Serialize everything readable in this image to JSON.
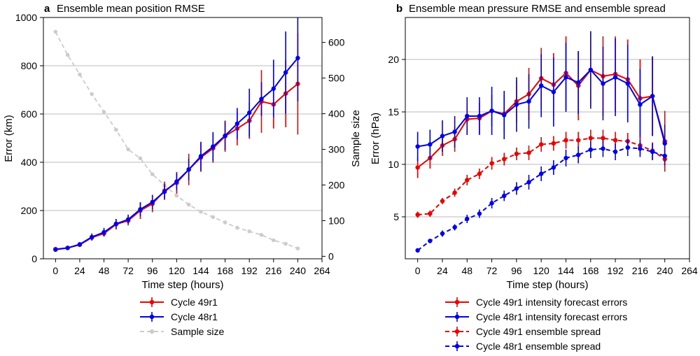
{
  "colors": {
    "c49": "#ee0000",
    "c48": "#0000ee",
    "sample": "#cccccc",
    "grid": "#bbbbbb"
  },
  "chart_data": [
    {
      "type": "line",
      "panel_letter": "a",
      "title": "Ensemble mean position RMSE",
      "xlabel": "Time step (hours)",
      "ylabel": "Error (km)",
      "y2label": "Sample size",
      "xlim": [
        -12,
        264
      ],
      "ylim": [
        0,
        1000
      ],
      "y2lim": [
        -7,
        670
      ],
      "xticks": [
        0,
        24,
        48,
        72,
        96,
        120,
        144,
        168,
        192,
        216,
        240,
        264
      ],
      "yticks": [
        0,
        200,
        400,
        600,
        800,
        1000
      ],
      "y2ticks": [
        0,
        100,
        200,
        300,
        400,
        500,
        600
      ],
      "grid": "horizontal",
      "x": [
        0,
        12,
        24,
        36,
        48,
        60,
        72,
        84,
        96,
        108,
        120,
        132,
        144,
        156,
        168,
        180,
        192,
        204,
        216,
        228,
        240
      ],
      "series": [
        {
          "name": "Cycle 49r1",
          "color_key": "c49",
          "axis": "left",
          "dashed": false,
          "values": [
            40,
            45,
            58,
            88,
            105,
            143,
            158,
            200,
            228,
            282,
            315,
            370,
            420,
            458,
            508,
            540,
            572,
            652,
            640,
            685,
            725
          ],
          "errors": [
            5,
            5,
            6,
            10,
            12,
            22,
            20,
            35,
            35,
            38,
            45,
            65,
            60,
            60,
            65,
            70,
            75,
            130,
            100,
            140,
            210
          ]
        },
        {
          "name": "Cycle 48r1",
          "color_key": "c48",
          "axis": "left",
          "dashed": false,
          "values": [
            38,
            45,
            60,
            90,
            110,
            145,
            163,
            205,
            235,
            278,
            320,
            370,
            425,
            465,
            510,
            560,
            605,
            662,
            705,
            772,
            832
          ],
          "errors": [
            5,
            5,
            6,
            15,
            18,
            20,
            20,
            28,
            30,
            30,
            35,
            45,
            60,
            60,
            60,
            65,
            100,
            70,
            120,
            170,
            180
          ]
        },
        {
          "name": "Sample size",
          "color_key": "sample",
          "axis": "right",
          "dashed": true,
          "values": [
            630,
            565,
            510,
            455,
            405,
            355,
            300,
            275,
            230,
            200,
            170,
            145,
            125,
            110,
            95,
            80,
            70,
            60,
            45,
            35,
            22
          ]
        }
      ],
      "legend": {
        "placement": "below",
        "items": [
          "Cycle 49r1",
          "Cycle 48r1",
          "Sample size"
        ]
      }
    },
    {
      "type": "line",
      "panel_letter": "b",
      "title": "Ensemble mean pressure RMSE and ensemble spread",
      "xlabel": "Time step (hours)",
      "ylabel": "Error (hPa)",
      "xlim": [
        -12,
        264
      ],
      "ylim": [
        1,
        24
      ],
      "xticks": [
        0,
        24,
        48,
        72,
        96,
        120,
        144,
        168,
        192,
        216,
        240,
        264
      ],
      "yticks": [
        5,
        10,
        15,
        20
      ],
      "grid": "horizontal",
      "x": [
        0,
        12,
        24,
        36,
        48,
        60,
        72,
        84,
        96,
        108,
        120,
        132,
        144,
        156,
        168,
        180,
        192,
        204,
        216,
        228,
        240
      ],
      "series": [
        {
          "name": "Cycle 49r1 intensity forecast errors",
          "color_key": "c49",
          "dashed": false,
          "values": [
            9.7,
            10.6,
            11.8,
            12.4,
            14.3,
            14.4,
            15.1,
            14.8,
            16.0,
            16.7,
            18.2,
            17.6,
            18.7,
            17.5,
            19.0,
            18.4,
            18.6,
            18.1,
            16.3,
            16.5,
            12.2
          ],
          "errors": [
            1.0,
            1.0,
            1.0,
            1.2,
            1.5,
            1.5,
            1.5,
            1.8,
            2.0,
            2.5,
            2.9,
            3.0,
            3.5,
            3.3,
            3.5,
            3.8,
            3.6,
            3.8,
            3.7,
            3.8,
            2.9
          ]
        },
        {
          "name": "Cycle 48r1 intensity forecast errors",
          "color_key": "c48",
          "dashed": false,
          "values": [
            11.7,
            11.9,
            12.7,
            13.1,
            14.6,
            14.6,
            15.1,
            14.7,
            15.7,
            16.0,
            17.5,
            16.9,
            18.3,
            17.8,
            19.0,
            17.7,
            18.3,
            17.7,
            15.7,
            16.5,
            12.0
          ],
          "errors": [
            1.4,
            1.4,
            1.5,
            1.5,
            1.8,
            1.8,
            2.3,
            2.3,
            2.6,
            2.6,
            3.0,
            3.3,
            3.3,
            3.0,
            3.7,
            3.5,
            3.7,
            3.7,
            3.4,
            3.8,
            1.8
          ]
        },
        {
          "name": "Cycle 49r1 ensemble spread",
          "color_key": "c49",
          "dashed": true,
          "values": [
            5.2,
            5.3,
            6.5,
            7.3,
            8.5,
            9.1,
            10.1,
            10.5,
            11.0,
            11.1,
            11.9,
            12.0,
            12.3,
            12.3,
            12.5,
            12.5,
            12.3,
            12.2,
            11.8,
            11.3,
            10.5
          ],
          "errors": [
            0.3,
            0.3,
            0.3,
            0.4,
            0.5,
            0.5,
            0.6,
            0.6,
            0.6,
            0.7,
            0.7,
            0.7,
            0.8,
            0.8,
            0.8,
            0.8,
            0.8,
            0.8,
            0.8,
            0.8,
            0.9
          ]
        },
        {
          "name": "Cycle 48r1 ensemble spread",
          "color_key": "c48",
          "dashed": true,
          "values": [
            1.8,
            2.7,
            3.4,
            4.0,
            4.8,
            5.3,
            6.3,
            7.0,
            7.7,
            8.3,
            9.1,
            9.7,
            10.6,
            10.9,
            11.4,
            11.5,
            11.2,
            11.6,
            11.5,
            11.2,
            10.8
          ],
          "errors": [
            0.2,
            0.2,
            0.3,
            0.3,
            0.4,
            0.4,
            0.5,
            0.5,
            0.6,
            0.7,
            0.7,
            0.7,
            0.8,
            0.8,
            0.8,
            0.8,
            0.8,
            0.8,
            0.8,
            0.8,
            0.9
          ]
        }
      ],
      "legend": {
        "placement": "below",
        "items": [
          "Cycle 49r1 intensity forecast errors",
          "Cycle 48r1 intensity forecast errors",
          "Cycle 49r1 ensemble spread",
          "Cycle 48r1 ensemble spread"
        ]
      }
    }
  ]
}
